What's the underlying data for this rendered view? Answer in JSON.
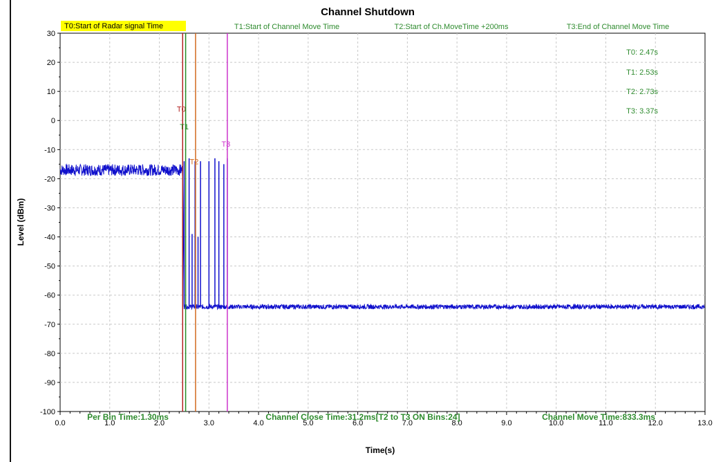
{
  "chart_data": {
    "type": "line",
    "title": "Channel Shutdown",
    "xlabel": "Time(s)",
    "ylabel": "Level (dBm)",
    "xlim": [
      0,
      13
    ],
    "ylim": [
      -100,
      30
    ],
    "x_ticks": [
      "0.0",
      "1.0",
      "2.0",
      "3.0",
      "4.0",
      "5.0",
      "6.0",
      "7.0",
      "8.0",
      "9.0",
      "10.0",
      "11.0",
      "12.0",
      "13.0"
    ],
    "y_ticks": [
      "30",
      "20",
      "10",
      "0",
      "-10",
      "-20",
      "-30",
      "-40",
      "-50",
      "-60",
      "-70",
      "-80",
      "-90",
      "-100"
    ],
    "grid": true,
    "series_color": "#1010cc",
    "series": [
      {
        "x": [
          0.0,
          2.47,
          2.5,
          13.0
        ],
        "y": [
          -17,
          -17,
          -64,
          -64
        ],
        "noise_before": -17,
        "noise_after": -64
      }
    ],
    "bursts": [
      {
        "x": 2.5,
        "y": -14
      },
      {
        "x": 2.6,
        "y": -13
      },
      {
        "x": 2.66,
        "y": -39
      },
      {
        "x": 2.72,
        "y": -14
      },
      {
        "x": 2.78,
        "y": -40
      },
      {
        "x": 2.83,
        "y": -14
      },
      {
        "x": 3.0,
        "y": -14
      },
      {
        "x": 3.12,
        "y": -13
      },
      {
        "x": 3.2,
        "y": -14
      },
      {
        "x": 3.3,
        "y": -15
      },
      {
        "x": 3.37,
        "y": -13
      }
    ],
    "markers": [
      {
        "label": "T0",
        "x": 2.47,
        "color": "#b22222",
        "label_y": 3
      },
      {
        "label": "T1",
        "x": 2.53,
        "color": "#228b22",
        "label_y": -3
      },
      {
        "label": "T2",
        "x": 2.73,
        "color": "#d2691e",
        "label_y": -15
      },
      {
        "label": "T3",
        "x": 3.37,
        "color": "#cc33cc",
        "label_y": -9
      }
    ],
    "legend": {
      "t0": "T0:Start of Radar signal Time",
      "t1": "T1:Start of Channel Move Time",
      "t2": "T2:Start of Ch.MoveTime +200ms",
      "t3": "T3:End of Channel Move Time",
      "t0_highlight": "#ffff00"
    },
    "marker_values": [
      "T0: 2.47s",
      "T1: 2.53s",
      "T2: 2.73s",
      "T3: 3.37s"
    ],
    "footer": {
      "bin_time": "Per Bin Time:1.30ms",
      "close_time": "Channel Close Time:31.2ms[T2 to T3 ON Bins:24]",
      "move_time": "Channel Move Time:833.3ms"
    }
  }
}
